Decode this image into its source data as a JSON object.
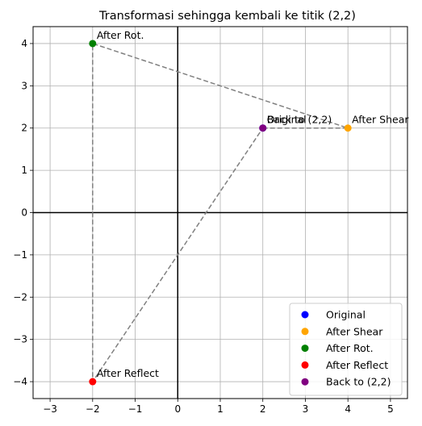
{
  "chart_data": {
    "type": "scatter",
    "title": "Transformasi sehingga kembali ke titik (2,2)",
    "xlabel": "",
    "ylabel": "",
    "xlim": [
      -3.4,
      5.4
    ],
    "ylim": [
      -4.4,
      4.4
    ],
    "x_ticks": [
      -3,
      -2,
      -1,
      0,
      1,
      2,
      3,
      4,
      5
    ],
    "y_ticks": [
      -4,
      -3,
      -2,
      -1,
      0,
      1,
      2,
      3,
      4
    ],
    "grid": true,
    "legend_position": "bottom-right",
    "series": [
      {
        "name": "Original",
        "color": "#0000ff",
        "x": 2,
        "y": 2
      },
      {
        "name": "After Shear",
        "color": "#ffa500",
        "x": 4,
        "y": 2
      },
      {
        "name": "After Rot.",
        "color": "#008000",
        "x": -2,
        "y": 4
      },
      {
        "name": "After Reflect",
        "color": "#ff0000",
        "x": -2,
        "y": -4
      },
      {
        "name": "Back to (2,2)",
        "color": "#800080",
        "x": 2,
        "y": 2
      }
    ],
    "path": [
      [
        2,
        2
      ],
      [
        4,
        2
      ],
      [
        -2,
        4
      ],
      [
        -2,
        -4
      ],
      [
        2,
        2
      ]
    ],
    "path_color": "#808080",
    "annotations": [
      {
        "text": "Original",
        "x": 2,
        "y": 2
      },
      {
        "text": "After Shear",
        "x": 4,
        "y": 2
      },
      {
        "text": "After Rot.",
        "x": -2,
        "y": 4
      },
      {
        "text": "After Reflect",
        "x": -2,
        "y": -4
      },
      {
        "text": "Back to (2,2)",
        "x": 2,
        "y": 2
      }
    ]
  }
}
